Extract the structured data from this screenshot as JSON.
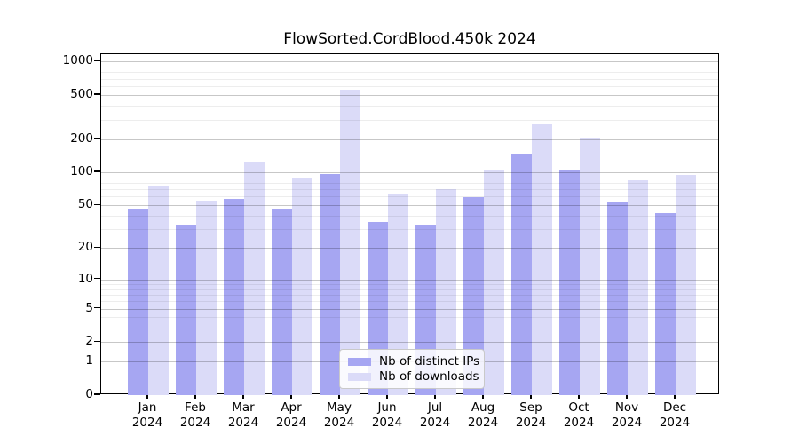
{
  "chart_data": {
    "type": "bar",
    "title": "FlowSorted.CordBlood.450k 2024",
    "xlabel": "",
    "ylabel": "",
    "categories": [
      "Jan",
      "Feb",
      "Mar",
      "Apr",
      "May",
      "Jun",
      "Jul",
      "Aug",
      "Sep",
      "Oct",
      "Nov",
      "Dec"
    ],
    "x_year_label": "2024",
    "series": [
      {
        "key": "distinct-ips",
        "name": "Nb of distinct IPs",
        "color": "#a6a6f2",
        "values": [
          47,
          33,
          57,
          47,
          97,
          35,
          33,
          59,
          148,
          105,
          54,
          42
        ]
      },
      {
        "key": "downloads",
        "name": "Nb of downloads",
        "color": "#dbdbf8",
        "values": [
          76,
          55,
          125,
          90,
          560,
          63,
          70,
          104,
          272,
          207,
          84,
          95
        ]
      }
    ],
    "y_scale": "log1p",
    "y_major_ticks": [
      0,
      1,
      2,
      5,
      10,
      20,
      50,
      100,
      200,
      500,
      1000
    ],
    "y_minor_ticks": [
      3,
      4,
      6,
      7,
      8,
      9,
      30,
      40,
      60,
      70,
      80,
      90,
      300,
      400,
      600,
      700,
      800,
      900
    ],
    "ylim": [
      0,
      1170
    ],
    "grid": "on",
    "legend_position": "inside-bottom-center",
    "colors": {
      "axis": "#000000",
      "grid_major": "rgba(0,0,0,0.22)",
      "grid_minor": "rgba(0,0,0,0.07)",
      "background": "#ffffff"
    }
  }
}
